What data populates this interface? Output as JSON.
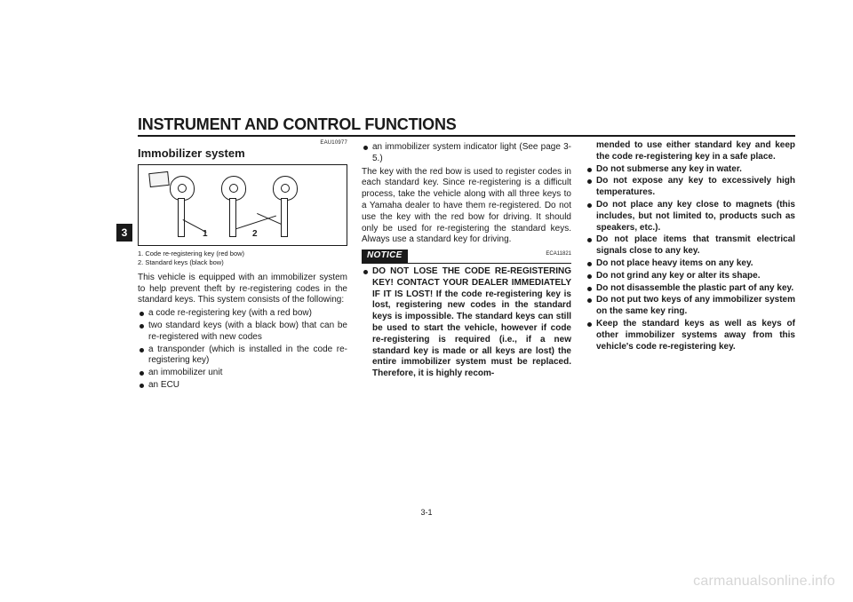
{
  "header": "INSTRUMENT AND CONTROL FUNCTIONS",
  "chapter_tab": "3",
  "page_number": "3-1",
  "watermark": "carmanualsonline.info",
  "col1": {
    "refcode": "EAU10977",
    "title": "Immobilizer system",
    "figure": {
      "num1": "1",
      "num2": "2",
      "caption1": "1. Code re-registering key (red bow)",
      "caption2": "2. Standard keys (black bow)"
    },
    "intro": "This vehicle is equipped with an immobilizer system to help prevent theft by re-registering codes in the standard keys. This system consists of the following:",
    "items": [
      "a code re-registering key (with a red bow)",
      "two standard keys (with a black bow) that can be re-registered with new codes",
      "a transponder (which is installed in the code re-registering key)",
      "an immobilizer unit",
      "an ECU"
    ]
  },
  "col2": {
    "top_items": [
      "an immobilizer system indicator light (See page 3-5.)"
    ],
    "para": "The key with the red bow is used to register codes in each standard key. Since re-registering is a difficult process, take the vehicle along with all three keys to a Yamaha dealer to have them re-registered. Do not use the key with the red bow for driving. It should only be used for re-registering the standard keys. Always use a standard key for driving.",
    "notice_label": "NOTICE",
    "notice_refcode": "ECA11821",
    "notice_items": [
      "DO NOT LOSE THE CODE RE-REGISTERING KEY! CONTACT YOUR DEALER IMMEDIATELY IF IT IS LOST! If the code re-registering key is lost, registering new codes in the standard keys is impossible. The standard keys can still be used to start the vehicle, however if code re-registering is required (i.e., if a new standard key is made or all keys are lost) the entire immobilizer system must be replaced. Therefore, it is highly recom-"
    ]
  },
  "col3": {
    "cont": "mended to use either standard key and keep the code re-registering key in a safe place.",
    "items": [
      "Do not submerse any key in water.",
      "Do not expose any key to excessively high temperatures.",
      "Do not place any key close to magnets (this includes, but not limited to, products such as speakers, etc.).",
      "Do not place items that transmit electrical signals close to any key.",
      "Do not place heavy items on any key.",
      "Do not grind any key or alter its shape.",
      "Do not disassemble the plastic part of any key.",
      "Do not put two keys of any immobilizer system on the same key ring.",
      "Keep the standard keys as well as keys of other immobilizer systems away from this vehicle's code re-registering key."
    ]
  }
}
